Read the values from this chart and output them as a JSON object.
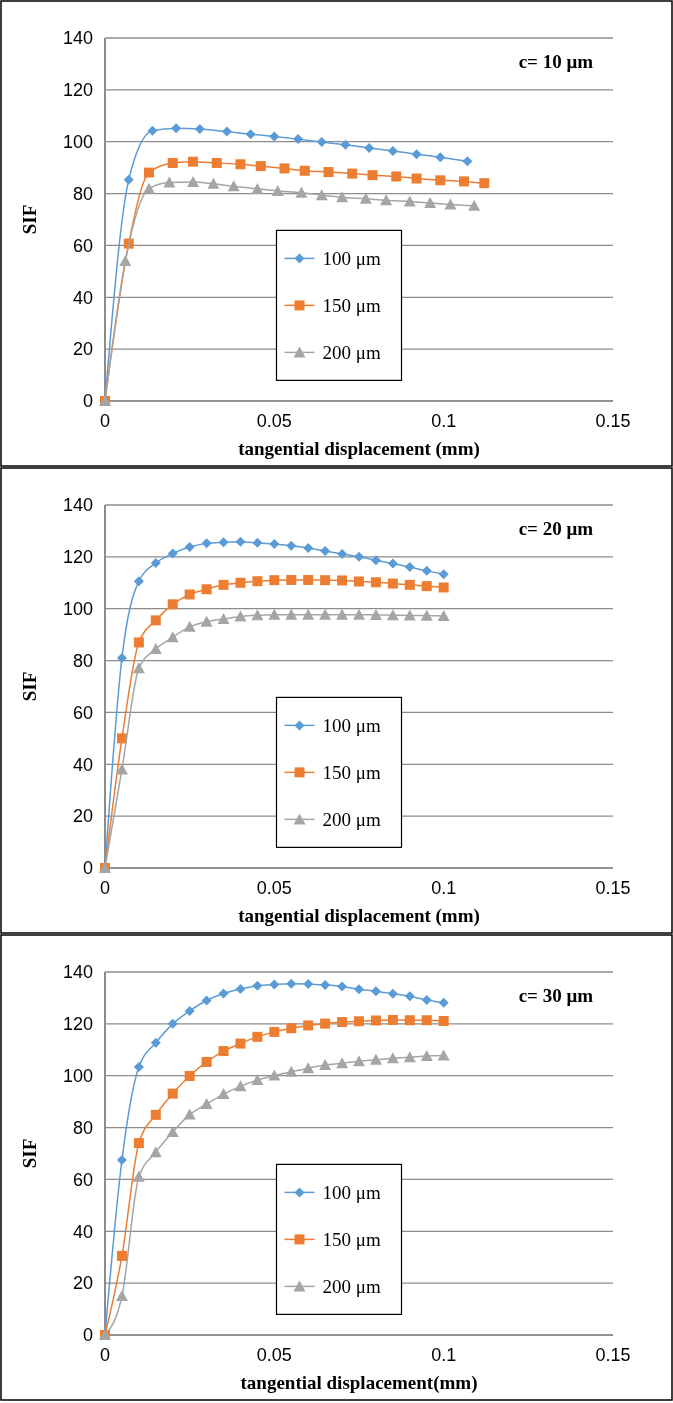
{
  "chart_data": [
    {
      "type": "line",
      "xlabel": "tangential displacement (mm)",
      "ylabel": "SIF",
      "annotations": [
        "c= 10 μm"
      ],
      "xlim": [
        0,
        0.15
      ],
      "xticks": [
        0,
        0.05,
        0.1,
        0.15
      ],
      "ylim": [
        0,
        140
      ],
      "yticks": [
        0,
        20,
        40,
        60,
        80,
        100,
        120,
        140
      ],
      "grid": "y",
      "legend": "center",
      "series": [
        {
          "name": "100 μm",
          "color": "#5b9bd5",
          "marker": "diamond",
          "x": [
            0,
            0.007,
            0.014,
            0.021,
            0.028,
            0.036,
            0.043,
            0.05,
            0.057,
            0.064,
            0.071,
            0.078,
            0.085,
            0.092,
            0.099,
            0.107
          ],
          "values": [
            0,
            85.3,
            104.2,
            105.2,
            104.9,
            103.9,
            102.9,
            102,
            101,
            99.9,
            98.8,
            97.6,
            96.4,
            95.2,
            94,
            92.5
          ]
        },
        {
          "name": "150 μm",
          "color": "#ed7d31",
          "marker": "square",
          "x": [
            0,
            0.007,
            0.013,
            0.02,
            0.026,
            0.033,
            0.04,
            0.046,
            0.053,
            0.059,
            0.066,
            0.073,
            0.079,
            0.086,
            0.092,
            0.099,
            0.106,
            0.112
          ],
          "values": [
            0,
            60.7,
            88.1,
            91.8,
            92.3,
            91.8,
            91.3,
            90.6,
            89.7,
            88.8,
            88.3,
            87.7,
            87.1,
            86.6,
            85.8,
            85.1,
            84.7,
            84
          ]
        },
        {
          "name": "200 μm",
          "color": "#a5a5a5",
          "marker": "triangle",
          "x": [
            0,
            0.006,
            0.013,
            0.019,
            0.026,
            0.032,
            0.038,
            0.045,
            0.051,
            0.058,
            0.064,
            0.07,
            0.077,
            0.083,
            0.09,
            0.096,
            0.102,
            0.109
          ],
          "values": [
            0,
            54,
            81.9,
            84.3,
            84.5,
            83.8,
            82.8,
            81.8,
            81,
            80.3,
            79.4,
            78.6,
            78,
            77.4,
            76.9,
            76.4,
            75.8,
            75.3
          ]
        }
      ]
    },
    {
      "type": "line",
      "xlabel": "tangential displacement (mm)",
      "ylabel": "SIF",
      "annotations": [
        "c= 20 μm"
      ],
      "xlim": [
        0,
        0.15
      ],
      "xticks": [
        0,
        0.05,
        0.1,
        0.15
      ],
      "ylim": [
        0,
        140
      ],
      "yticks": [
        0,
        20,
        40,
        60,
        80,
        100,
        120,
        140
      ],
      "grid": "y",
      "legend": "center",
      "x": [
        0,
        0.005,
        0.01,
        0.015,
        0.02,
        0.025,
        0.03,
        0.035,
        0.04,
        0.045,
        0.05,
        0.055,
        0.06,
        0.065,
        0.07,
        0.075,
        0.08,
        0.085,
        0.09,
        0.095,
        0.1
      ],
      "series": [
        {
          "name": "100 μm",
          "color": "#5b9bd5",
          "marker": "diamond",
          "values": [
            0,
            81,
            110.6,
            117.6,
            121.3,
            123.8,
            125.2,
            125.6,
            125.8,
            125.4,
            125,
            124.3,
            123.4,
            122.3,
            121.1,
            120,
            118.7,
            117.4,
            116.1,
            114.6,
            113.3
          ]
        },
        {
          "name": "150 μm",
          "color": "#ed7d31",
          "marker": "square",
          "values": [
            0,
            50,
            87,
            95.5,
            101.7,
            105.5,
            107.5,
            109.2,
            110,
            110.6,
            111,
            111.1,
            111.1,
            111,
            110.9,
            110.5,
            110.2,
            109.7,
            109.2,
            108.7,
            108.2
          ]
        },
        {
          "name": "200 μm",
          "color": "#a5a5a5",
          "marker": "triangle",
          "values": [
            0,
            38,
            77,
            84.5,
            89,
            93,
            95,
            96,
            97,
            97.5,
            97.7,
            97.7,
            97.7,
            97.7,
            97.7,
            97.7,
            97.6,
            97.5,
            97.4,
            97.3,
            97.2
          ]
        }
      ]
    },
    {
      "type": "line",
      "xlabel": "tangential displacement(mm)",
      "ylabel": "SIF",
      "annotations": [
        "c= 30 μm"
      ],
      "xlim": [
        0,
        0.15
      ],
      "xticks": [
        0,
        0.05,
        0.1,
        0.15
      ],
      "ylim": [
        0,
        140
      ],
      "yticks": [
        0,
        20,
        40,
        60,
        80,
        100,
        120,
        140
      ],
      "grid": "y",
      "legend": "center",
      "x": [
        0,
        0.005,
        0.01,
        0.015,
        0.02,
        0.025,
        0.03,
        0.035,
        0.04,
        0.045,
        0.05,
        0.055,
        0.06,
        0.065,
        0.07,
        0.075,
        0.08,
        0.085,
        0.09,
        0.095,
        0.1
      ],
      "series": [
        {
          "name": "100 μm",
          "color": "#5b9bd5",
          "marker": "diamond",
          "values": [
            0,
            67.5,
            103.4,
            112.7,
            120,
            125,
            129,
            131.7,
            133.4,
            134.7,
            135.2,
            135.5,
            135.4,
            135,
            134.4,
            133.3,
            132.6,
            131.6,
            130.6,
            129.2,
            128.1
          ]
        },
        {
          "name": "150 μm",
          "color": "#ed7d31",
          "marker": "square",
          "values": [
            0,
            30.5,
            74,
            84.9,
            93.1,
            99.9,
            105.3,
            109.5,
            112.4,
            115,
            116.9,
            118.3,
            119.4,
            120.1,
            120.7,
            121,
            121.3,
            121.5,
            121.4,
            121.4,
            121.1
          ]
        },
        {
          "name": "200 μm",
          "color": "#a5a5a5",
          "marker": "triangle",
          "values": [
            0,
            15,
            61,
            70.5,
            78.3,
            85,
            89.1,
            92.9,
            95.9,
            98.3,
            100.1,
            101.5,
            102.9,
            104.1,
            104.8,
            105.6,
            106.2,
            106.7,
            107.1,
            107.6,
            107.8
          ]
        }
      ]
    }
  ]
}
